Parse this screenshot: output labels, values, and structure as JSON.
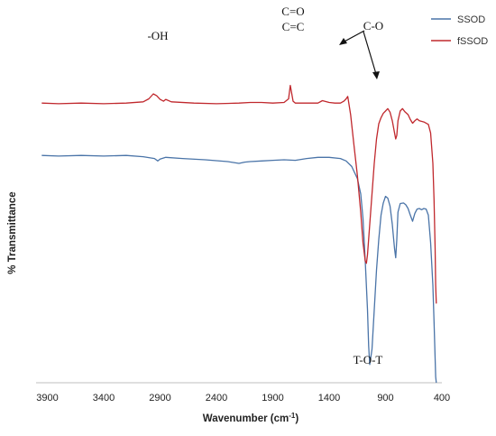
{
  "chart_data": {
    "type": "line",
    "title": "",
    "xlabel": "Wavenumber (cm",
    "xlabel_sup": "-1",
    "xlabel_end": ")",
    "ylabel": "% Transmittance",
    "x_reversed": true,
    "xlim": [
      4000,
      400
    ],
    "x_ticks": [
      3900,
      3400,
      2900,
      2400,
      1900,
      1400,
      900,
      400
    ],
    "y_tick_labels": false,
    "legend_position": "top-right",
    "legend": [
      {
        "name": "SSOD",
        "color": "#4a74a8"
      },
      {
        "name": "fSSOD",
        "color": "#c0282d"
      }
    ],
    "annotations": [
      {
        "text": "-OH",
        "x": 2880
      },
      {
        "text": "C=O",
        "x": 1740
      },
      {
        "text": "C=C",
        "x": 1740
      },
      {
        "text": "C-O",
        "x": 1110
      },
      {
        "text": "T-O-T",
        "x": 1030
      }
    ],
    "series": [
      {
        "name": "SSOD",
        "color": "#4a74a8",
        "x": [
          3950,
          3800,
          3600,
          3400,
          3200,
          3050,
          2950,
          2920,
          2900,
          2850,
          2700,
          2500,
          2300,
          2200,
          2150,
          2100,
          2000,
          1900,
          1800,
          1700,
          1600,
          1500,
          1400,
          1300,
          1250,
          1200,
          1150,
          1120,
          1100,
          1080,
          1060,
          1050,
          1040,
          1020,
          1000,
          980,
          960,
          940,
          920,
          900,
          880,
          860,
          840,
          820,
          810,
          800,
          790,
          770,
          740,
          720,
          700,
          680,
          660,
          640,
          620,
          600,
          580,
          560,
          540,
          520,
          500,
          480,
          470,
          460,
          455,
          450
        ],
        "y": [
          95.3,
          95.2,
          95.3,
          95.2,
          95.3,
          95.1,
          94.8,
          94.4,
          94.7,
          95.0,
          94.8,
          94.6,
          94.3,
          94.0,
          94.2,
          94.3,
          94.4,
          94.5,
          94.6,
          94.5,
          94.8,
          95.0,
          95.0,
          94.8,
          94.4,
          93.5,
          91.5,
          89.0,
          85.0,
          78.0,
          70.0,
          64.0,
          61.0,
          63.5,
          70.0,
          76.5,
          81.5,
          85.5,
          87.5,
          88.6,
          88.3,
          87.0,
          84.0,
          80.0,
          78.5,
          81.5,
          86.0,
          87.4,
          87.5,
          87.2,
          86.6,
          85.5,
          84.5,
          85.8,
          86.5,
          86.6,
          86.4,
          86.6,
          86.5,
          85.5,
          81.0,
          74.0,
          68.0,
          62.0,
          59.0,
          58.0
        ]
      },
      {
        "name": "fSSOD",
        "color": "#c0282d",
        "x": [
          3950,
          3800,
          3600,
          3400,
          3200,
          3050,
          3000,
          2960,
          2930,
          2900,
          2870,
          2850,
          2800,
          2600,
          2400,
          2200,
          2100,
          2000,
          1900,
          1800,
          1760,
          1745,
          1735,
          1720,
          1700,
          1600,
          1500,
          1460,
          1400,
          1350,
          1300,
          1270,
          1250,
          1235,
          1210,
          1180,
          1150,
          1120,
          1100,
          1080,
          1070,
          1060,
          1040,
          1020,
          1000,
          980,
          960,
          940,
          920,
          900,
          880,
          860,
          840,
          820,
          810,
          800,
          790,
          770,
          750,
          730,
          700,
          680,
          660,
          640,
          620,
          600,
          560,
          520,
          500,
          480,
          470,
          460,
          455,
          450
        ],
        "y": [
          103.9,
          103.8,
          103.9,
          103.8,
          103.9,
          104.1,
          104.6,
          105.4,
          105.1,
          104.5,
          104.2,
          104.5,
          104.1,
          103.9,
          103.8,
          103.9,
          104.0,
          104.0,
          103.9,
          104.0,
          104.6,
          106.8,
          105.8,
          104.2,
          103.9,
          103.9,
          103.9,
          104.3,
          104.0,
          103.9,
          103.9,
          104.2,
          104.6,
          105.0,
          102.0,
          97.0,
          92.0,
          86.0,
          81.0,
          78.0,
          77.6,
          79.0,
          84.0,
          89.0,
          94.0,
          98.0,
          100.5,
          101.5,
          102.2,
          102.6,
          103.0,
          102.4,
          101.0,
          99.0,
          98.0,
          98.6,
          101.0,
          102.6,
          103.0,
          102.5,
          102.0,
          101.2,
          100.6,
          101.0,
          101.3,
          101.0,
          100.8,
          100.4,
          99.0,
          94.0,
          88.0,
          80.0,
          74.0,
          71.0
        ]
      }
    ]
  }
}
